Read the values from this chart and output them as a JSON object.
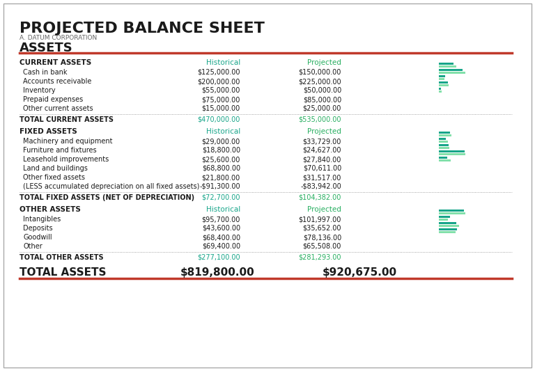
{
  "title": "PROJECTED BALANCE SHEET",
  "subtitle": "A. DATUM CORPORATION",
  "section_assets": "ASSETS",
  "orange_color": "#C0392B",
  "green_color": "#27AE60",
  "teal_color": "#17A589",
  "dark_text": "#1A1A1A",
  "gray_text": "#555555",
  "bg_color": "#FFFFFF",
  "border_color": "#CCCCCC",
  "current_assets_header": "CURRENT ASSETS",
  "current_assets_col1": "Historical",
  "current_assets_col2": "Projected",
  "current_assets_items": [
    [
      "Cash in bank",
      "$125,000.00",
      "$150,000.00"
    ],
    [
      "Accounts receivable",
      "$200,000.00",
      "$225,000.00"
    ],
    [
      "Inventory",
      "$55,000.00",
      "$50,000.00"
    ],
    [
      "Prepaid expenses",
      "$75,000.00",
      "$85,000.00"
    ],
    [
      "Other current assets",
      "$15,000.00",
      "$25,000.00"
    ]
  ],
  "current_assets_total_label": "TOTAL CURRENT ASSETS",
  "current_assets_total_hist": "$470,000.00",
  "current_assets_total_proj": "$535,000.00",
  "current_assets_bar_hist": [
    125,
    200,
    55,
    75,
    15
  ],
  "current_assets_bar_proj": [
    150,
    225,
    50,
    85,
    25
  ],
  "fixed_assets_header": "FIXED ASSETS",
  "fixed_assets_col1": "Historical",
  "fixed_assets_col2": "Projected",
  "fixed_assets_items": [
    [
      "Machinery and equipment",
      "$29,000.00",
      "$33,729.00"
    ],
    [
      "Furniture and fixtures",
      "$18,800.00",
      "$24,627.00"
    ],
    [
      "Leasehold improvements",
      "$25,600.00",
      "$27,840.00"
    ],
    [
      "Land and buildings",
      "$68,800.00",
      "$70,611.00"
    ],
    [
      "Other fixed assets",
      "$21,800.00",
      "$31,517.00"
    ],
    [
      "(LESS accumulated depreciation on all fixed assets)",
      "-$91,300.00",
      "-$83,942.00"
    ]
  ],
  "fixed_assets_total_label": "TOTAL FIXED ASSETS (NET OF DEPRECIATION)",
  "fixed_assets_total_hist": "$72,700.00",
  "fixed_assets_total_proj": "$104,382.00",
  "fixed_assets_bar_hist": [
    29,
    18.8,
    25.6,
    68.8,
    21.8
  ],
  "fixed_assets_bar_proj": [
    33.729,
    24.627,
    27.84,
    70.611,
    31.517
  ],
  "other_assets_header": "OTHER ASSETS",
  "other_assets_col1": "Historical",
  "other_assets_col2": "Projected",
  "other_assets_items": [
    [
      "Intangibles",
      "$95,700.00",
      "$101,997.00"
    ],
    [
      "Deposits",
      "$43,600.00",
      "$35,652.00"
    ],
    [
      "Goodwill",
      "$68,400.00",
      "$78,136.00"
    ],
    [
      "Other",
      "$69,400.00",
      "$65,508.00"
    ]
  ],
  "other_assets_total_label": "TOTAL OTHER ASSETS",
  "other_assets_total_hist": "$277,100.00",
  "other_assets_total_proj": "$281,293.00",
  "other_assets_bar_hist": [
    95.7,
    43.6,
    68.4,
    69.4
  ],
  "other_assets_bar_proj": [
    101.997,
    35.652,
    78.136,
    65.508
  ],
  "total_label": "TOTAL ASSETS",
  "total_hist": "$819,800.00",
  "total_proj": "$920,675.00"
}
